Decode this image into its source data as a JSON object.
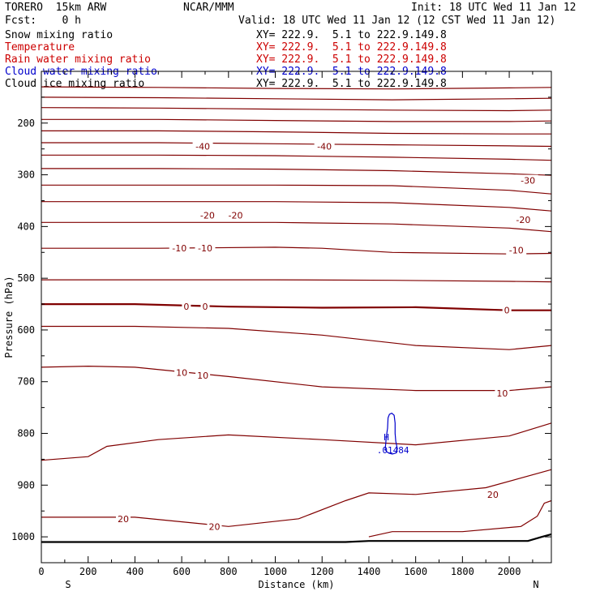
{
  "header": {
    "model": "TORERO  15km ARW",
    "center": "NCAR/MMM",
    "init": "Init: 18 UTC Wed 11 Jan 12",
    "fcst": "Fcst:    0 h",
    "valid": "Valid: 18 UTC Wed 11 Jan 12 (12 CST Wed 11 Jan 12)"
  },
  "fields": [
    {
      "name": "Snow mixing ratio",
      "coords": "XY= 222.9.  5.1 to 222.9.149.8",
      "color": "#000000"
    },
    {
      "name": "Temperature",
      "coords": "XY= 222.9.  5.1 to 222.9.149.8",
      "color": "#cc0000"
    },
    {
      "name": "Rain water mixing ratio",
      "coords": "XY= 222.9.  5.1 to 222.9.149.8",
      "color": "#cc0000"
    },
    {
      "name": "Cloud water mixing ratio",
      "coords": "XY= 222.9.  5.1 to 222.9.149.8",
      "color": "#0000cc"
    },
    {
      "name": "Cloud ice mixing ratio",
      "coords": "XY= 222.9.  5.1 to 222.9.149.8",
      "color": "#000000"
    }
  ],
  "chart_data": {
    "type": "line",
    "xlabel": "Distance (km)",
    "ylabel": "Pressure (hPa)",
    "xlim": [
      0,
      2180
    ],
    "ylim": [
      1050,
      100
    ],
    "y_scale": "linear",
    "x_ticks": [
      0,
      200,
      400,
      600,
      800,
      1000,
      1200,
      1400,
      1600,
      1800,
      2000
    ],
    "y_ticks": [
      200,
      300,
      400,
      500,
      600,
      700,
      800,
      900,
      1000
    ],
    "x_endpoint_labels": {
      "left": "S",
      "right": "N"
    },
    "colors": {
      "temperature": "#800000",
      "cloud_water": "#0000cc",
      "terrain": "#000000"
    },
    "isotherm_labels": [
      {
        "text": "-40",
        "x": 690,
        "p": 245
      },
      {
        "text": "-40",
        "x": 1210,
        "p": 245
      },
      {
        "text": "-30",
        "x": 2080,
        "p": 311
      },
      {
        "text": "-20",
        "x": 710,
        "p": 378
      },
      {
        "text": "-20",
        "x": 830,
        "p": 378
      },
      {
        "text": "-20",
        "x": 2060,
        "p": 387
      },
      {
        "text": "-10",
        "x": 590,
        "p": 442
      },
      {
        "text": "-10",
        "x": 700,
        "p": 442
      },
      {
        "text": "-10",
        "x": 2030,
        "p": 446
      },
      {
        "text": "0",
        "x": 620,
        "p": 555
      },
      {
        "text": "0",
        "x": 700,
        "p": 555
      },
      {
        "text": "0",
        "x": 1990,
        "p": 562
      },
      {
        "text": "10",
        "x": 600,
        "p": 682
      },
      {
        "text": "10",
        "x": 690,
        "p": 688
      },
      {
        "text": "10",
        "x": 1970,
        "p": 722
      },
      {
        "text": "20",
        "x": 350,
        "p": 965
      },
      {
        "text": "20",
        "x": 740,
        "p": 980
      },
      {
        "text": "20",
        "x": 1930,
        "p": 918
      }
    ],
    "series": [
      {
        "kind": "isotherm",
        "x": [
          0,
          500,
          1000,
          1500,
          2000,
          2180
        ],
        "p": [
          130,
          131,
          133,
          134,
          132,
          131
        ]
      },
      {
        "kind": "isotherm",
        "x": [
          0,
          500,
          1000,
          1500,
          2000,
          2180
        ],
        "p": [
          150,
          151,
          153,
          155,
          153,
          152
        ]
      },
      {
        "kind": "isotherm",
        "x": [
          0,
          500,
          1000,
          1500,
          2000,
          2180
        ],
        "p": [
          170,
          171,
          173,
          175,
          176,
          175
        ]
      },
      {
        "kind": "isotherm",
        "x": [
          0,
          500,
          1000,
          1500,
          2000,
          2180
        ],
        "p": [
          193,
          193,
          195,
          197,
          197,
          196
        ]
      },
      {
        "kind": "isotherm",
        "x": [
          0,
          500,
          1000,
          1500,
          2000,
          2180
        ],
        "p": [
          215,
          215,
          217,
          220,
          221,
          221
        ]
      },
      {
        "kind": "isotherm",
        "x": [
          0,
          500,
          1000,
          1500,
          2000,
          2180
        ],
        "p": [
          238,
          238,
          240,
          242,
          244,
          245
        ]
      },
      {
        "kind": "isotherm",
        "x": [
          0,
          500,
          1000,
          1500,
          2000,
          2180
        ],
        "p": [
          262,
          262,
          263,
          266,
          270,
          272
        ]
      },
      {
        "kind": "isotherm",
        "x": [
          0,
          500,
          1000,
          1500,
          2000,
          2180
        ],
        "p": [
          288,
          288,
          289,
          292,
          298,
          301
        ]
      },
      {
        "kind": "isotherm",
        "x": [
          0,
          500,
          1000,
          1500,
          2000,
          2180
        ],
        "p": [
          320,
          320,
          320,
          321,
          330,
          337
        ]
      },
      {
        "kind": "isotherm",
        "x": [
          0,
          500,
          1000,
          1500,
          2000,
          2180
        ],
        "p": [
          352,
          352,
          352,
          354,
          363,
          370
        ]
      },
      {
        "kind": "isotherm",
        "x": [
          0,
          500,
          1000,
          1500,
          2000,
          2180
        ],
        "p": [
          392,
          392,
          392,
          395,
          403,
          410
        ]
      },
      {
        "kind": "isotherm",
        "x": [
          0,
          500,
          1000,
          1200,
          1500,
          2000,
          2180
        ],
        "p": [
          442,
          442,
          440,
          442,
          450,
          453,
          452
        ]
      },
      {
        "kind": "isotherm",
        "x": [
          0,
          500,
          1000,
          1500,
          2000,
          2180
        ],
        "p": [
          503,
          503,
          503,
          504,
          506,
          507
        ]
      },
      {
        "kind": "isotherm",
        "label": "0",
        "x": [
          0,
          400,
          800,
          1200,
          1600,
          2000,
          2180
        ],
        "p": [
          550,
          550,
          555,
          557,
          556,
          562,
          562
        ]
      },
      {
        "kind": "isotherm",
        "x": [
          0,
          400,
          800,
          1200,
          1600,
          2000,
          2180
        ],
        "p": [
          593,
          593,
          597,
          610,
          630,
          638,
          630
        ]
      },
      {
        "kind": "isotherm",
        "x": [
          0,
          200,
          400,
          800,
          1200,
          1600,
          2000,
          2180
        ],
        "p": [
          672,
          670,
          672,
          690,
          710,
          717,
          717,
          710
        ]
      },
      {
        "kind": "isotherm",
        "x": [
          0,
          200,
          280,
          500,
          800,
          1200,
          1600,
          2000,
          2180
        ],
        "p": [
          852,
          845,
          825,
          812,
          803,
          812,
          822,
          805,
          780
        ]
      },
      {
        "kind": "isotherm",
        "x": [
          0,
          400,
          800,
          1100,
          1300,
          1400,
          1600,
          1900,
          2180
        ],
        "p": [
          962,
          962,
          980,
          965,
          930,
          915,
          918,
          905,
          870
        ]
      },
      {
        "kind": "isotherm",
        "x": [
          1400,
          1500,
          1800,
          2050,
          2120,
          2150,
          2180
        ],
        "p": [
          1000,
          990,
          990,
          980,
          960,
          935,
          930
        ]
      }
    ],
    "terrain": {
      "x": [
        0,
        1300,
        1400,
        1800,
        2080,
        2140,
        2180
      ],
      "p": [
        1010,
        1010,
        1008,
        1008,
        1008,
        1000,
        995
      ]
    },
    "cloud_water_contour": {
      "x": [
        1470,
        1475,
        1480,
        1482,
        1488,
        1498,
        1508,
        1512,
        1512,
        1515,
        1522,
        1515,
        1500,
        1485,
        1475,
        1470
      ],
      "p": [
        830,
        805,
        790,
        770,
        763,
        761,
        765,
        780,
        800,
        815,
        830,
        838,
        840,
        838,
        835,
        830
      ],
      "max_label": "H",
      "max_value": ".01484",
      "max_x": 1475,
      "max_p": 807
    }
  }
}
